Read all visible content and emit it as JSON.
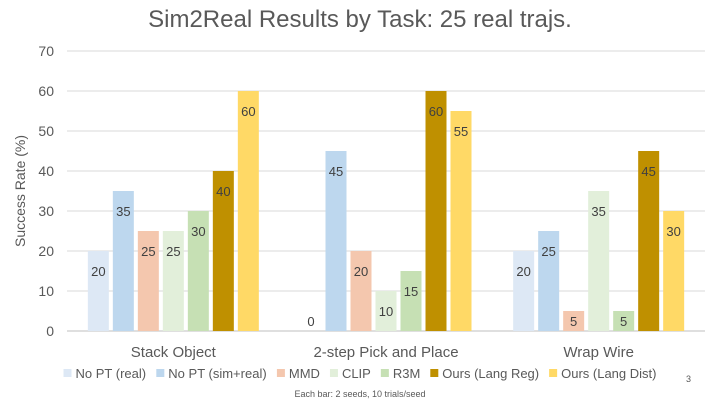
{
  "chart_data": {
    "type": "bar",
    "title": "Sim2Real Results by Task: 25 real trajs.",
    "ylabel": "Success Rate (%)",
    "xlabel": "",
    "ylim": [
      0,
      70
    ],
    "yticks": [
      0,
      10,
      20,
      30,
      40,
      50,
      60,
      70
    ],
    "grid": true,
    "legend_position": "bottom",
    "categories": [
      "Stack Object",
      "2-step Pick and Place",
      "Wrap Wire"
    ],
    "series": [
      {
        "name": "No PT (real)",
        "color": "#dde8f5",
        "values": [
          20,
          0,
          20
        ]
      },
      {
        "name": "No PT (sim+real)",
        "color": "#bdd7ee",
        "values": [
          35,
          45,
          25
        ]
      },
      {
        "name": "MMD",
        "color": "#f4c7ae",
        "values": [
          25,
          20,
          5
        ]
      },
      {
        "name": "CLIP",
        "color": "#e2efda",
        "values": [
          25,
          10,
          35
        ]
      },
      {
        "name": "R3M",
        "color": "#c6e0b4",
        "values": [
          30,
          15,
          5
        ]
      },
      {
        "name": "Ours (Lang Reg)",
        "color": "#bf9000",
        "values": [
          40,
          60,
          45
        ]
      },
      {
        "name": "Ours (Lang Dist)",
        "color": "#ffd966",
        "values": [
          60,
          55,
          30
        ]
      }
    ]
  },
  "footnote": "Each bar: 2 seeds, 10 trials/seed",
  "page_number": "3"
}
